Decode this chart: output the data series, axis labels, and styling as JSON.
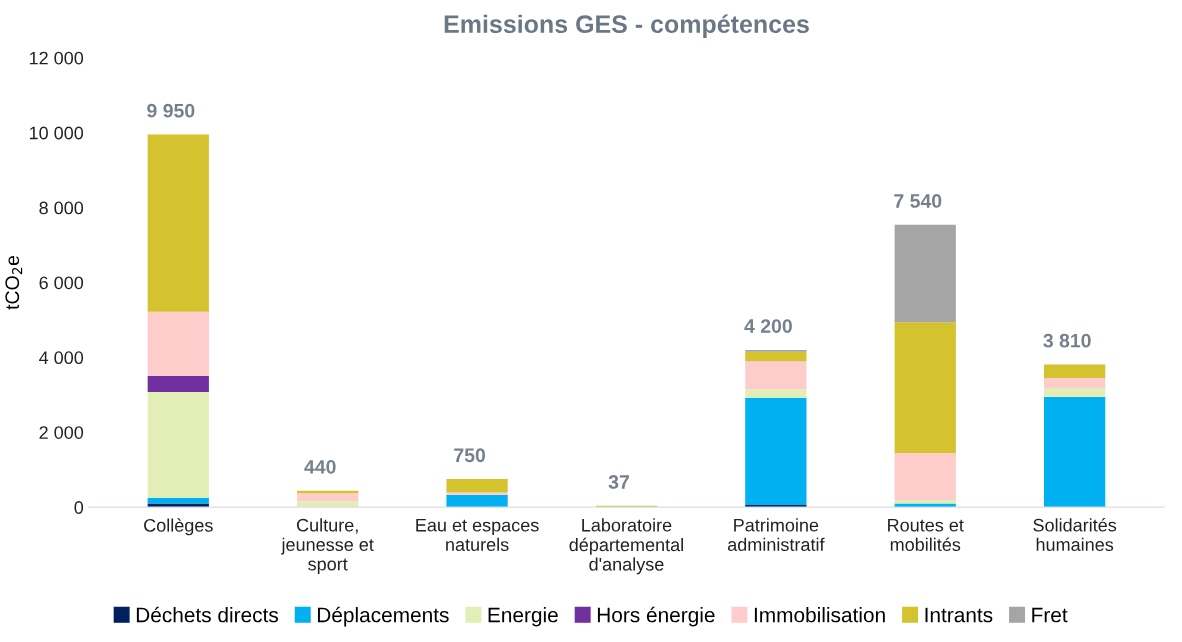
{
  "chart_data": {
    "type": "bar",
    "title": "Emissions GES - compétences",
    "ylabel": "tCO$_{2}$e",
    "categories": [
      "Collèges",
      "Culture,\njeunesse et\nsport",
      "Eau et espaces\nnaturels",
      "Laboratoire\ndépartemental\nd'analyse",
      "Patrimoine\nadministratif",
      "Routes et\nmobilités",
      "Solidarités\nhumaines"
    ],
    "stacked": true,
    "series": [
      {
        "name": "Déchets directs",
        "color": "#002060",
        "values": [
          100,
          0,
          0,
          0,
          60,
          0,
          0
        ]
      },
      {
        "name": "Déplacements",
        "color": "#00b0f0",
        "values": [
          153,
          0,
          330,
          0,
          2860,
          100,
          2940
        ]
      },
      {
        "name": "Energie",
        "color": "#e2eeb5",
        "values": [
          2824,
          160,
          0,
          0,
          230,
          90,
          240
        ]
      },
      {
        "name": "Hors énergie",
        "color": "#7030a0",
        "values": [
          425,
          0,
          0,
          0,
          0,
          0,
          0
        ]
      },
      {
        "name": "Immobilisation",
        "color": "#ffcccc",
        "values": [
          1719,
          210,
          60,
          0,
          750,
          1260,
          270
        ]
      },
      {
        "name": "Intrants",
        "color": "#d4c22f",
        "values": [
          4729,
          70,
          360,
          37,
          250,
          3490,
          360
        ]
      },
      {
        "name": "Fret",
        "color": "#a5a5a5",
        "values": [
          0,
          0,
          0,
          0,
          50,
          2600,
          0
        ]
      }
    ],
    "totals": [
      "9 950",
      "440",
      "750",
      "37",
      "4 200",
      "7 540",
      "3 810"
    ],
    "ylim": [
      0,
      12000
    ],
    "yticks": [
      {
        "value": 0,
        "label": "0"
      },
      {
        "value": 2000,
        "label": "2 000"
      },
      {
        "value": 4000,
        "label": "4 000"
      },
      {
        "value": 6000,
        "label": "6 000"
      },
      {
        "value": 8000,
        "label": "8 000"
      },
      {
        "value": 10000,
        "label": "10 000"
      },
      {
        "value": 12000,
        "label": "12 000"
      }
    ],
    "grid": false,
    "legend": "bottom"
  }
}
